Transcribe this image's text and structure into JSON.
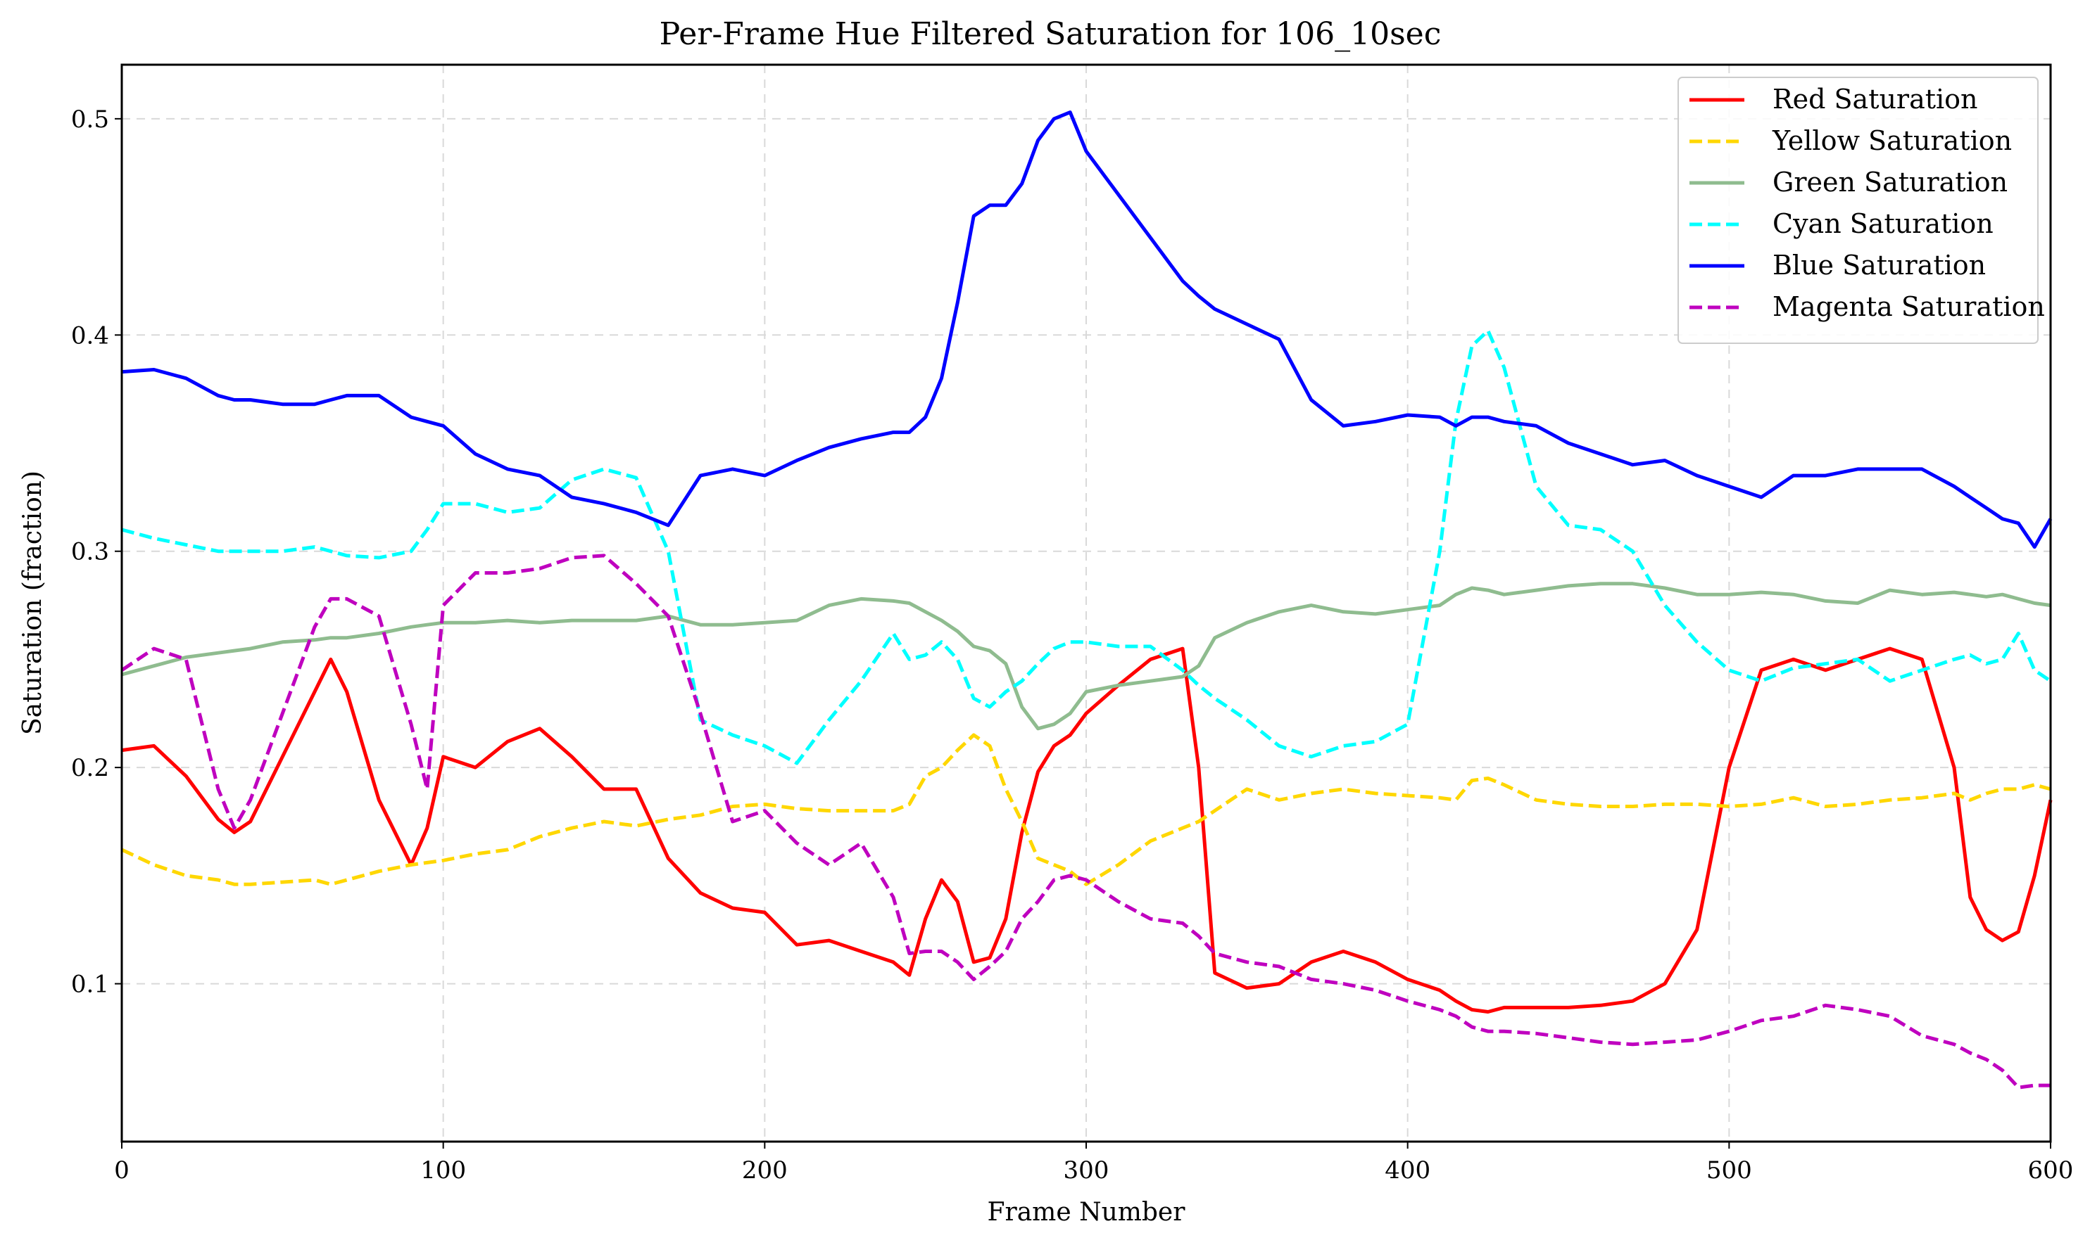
{
  "chart_data": {
    "type": "line",
    "title": "Per-Frame Hue Filtered Saturation for 106_10sec",
    "xlabel": "Frame Number",
    "ylabel": "Saturation (fraction)",
    "xlim": [
      0,
      600
    ],
    "ylim": [
      0.027,
      0.525
    ],
    "xticks": [
      0,
      100,
      200,
      300,
      400,
      500,
      600
    ],
    "yticks": [
      0.1,
      0.2,
      0.3,
      0.4,
      0.5
    ],
    "grid": true,
    "legend_position": "top-right",
    "x": [
      0,
      10,
      20,
      30,
      35,
      40,
      50,
      60,
      65,
      70,
      80,
      90,
      95,
      100,
      110,
      120,
      130,
      140,
      150,
      160,
      170,
      180,
      190,
      200,
      210,
      220,
      230,
      240,
      245,
      250,
      255,
      260,
      265,
      270,
      275,
      280,
      285,
      290,
      295,
      300,
      310,
      320,
      330,
      335,
      340,
      350,
      360,
      370,
      380,
      390,
      400,
      410,
      415,
      420,
      425,
      430,
      440,
      450,
      460,
      470,
      480,
      490,
      500,
      510,
      520,
      530,
      540,
      550,
      560,
      570,
      575,
      580,
      585,
      590,
      595,
      600
    ],
    "series": [
      {
        "name": "Red Saturation",
        "color": "#ff0000",
        "dash": "solid",
        "values": [
          0.208,
          0.21,
          0.196,
          0.176,
          0.17,
          0.175,
          0.205,
          0.235,
          0.25,
          0.235,
          0.185,
          0.155,
          0.172,
          0.205,
          0.2,
          0.212,
          0.218,
          0.205,
          0.19,
          0.19,
          0.158,
          0.142,
          0.135,
          0.133,
          0.118,
          0.12,
          0.115,
          0.11,
          0.104,
          0.13,
          0.148,
          0.138,
          0.11,
          0.112,
          0.13,
          0.17,
          0.198,
          0.21,
          0.215,
          0.225,
          0.238,
          0.25,
          0.255,
          0.2,
          0.105,
          0.098,
          0.1,
          0.11,
          0.115,
          0.11,
          0.102,
          0.097,
          0.092,
          0.088,
          0.087,
          0.089,
          0.089,
          0.089,
          0.09,
          0.092,
          0.1,
          0.125,
          0.2,
          0.245,
          0.25,
          0.245,
          0.25,
          0.255,
          0.25,
          0.2,
          0.14,
          0.125,
          0.12,
          0.124,
          0.15,
          0.185
        ]
      },
      {
        "name": "Yellow Saturation",
        "color": "#ffd700",
        "dash": "dashed",
        "values": [
          0.162,
          0.155,
          0.15,
          0.148,
          0.146,
          0.146,
          0.147,
          0.148,
          0.146,
          0.148,
          0.152,
          0.155,
          0.156,
          0.157,
          0.16,
          0.162,
          0.168,
          0.172,
          0.175,
          0.173,
          0.176,
          0.178,
          0.182,
          0.183,
          0.181,
          0.18,
          0.18,
          0.18,
          0.183,
          0.196,
          0.2,
          0.208,
          0.215,
          0.21,
          0.19,
          0.175,
          0.158,
          0.155,
          0.152,
          0.146,
          0.155,
          0.166,
          0.172,
          0.175,
          0.18,
          0.19,
          0.185,
          0.188,
          0.19,
          0.188,
          0.187,
          0.186,
          0.185,
          0.194,
          0.195,
          0.192,
          0.185,
          0.183,
          0.182,
          0.182,
          0.183,
          0.183,
          0.182,
          0.183,
          0.186,
          0.182,
          0.183,
          0.185,
          0.186,
          0.188,
          0.185,
          0.188,
          0.19,
          0.19,
          0.192,
          0.19
        ]
      },
      {
        "name": "Green Saturation",
        "color": "#8fbc8f",
        "dash": "solid",
        "values": [
          0.243,
          0.247,
          0.251,
          0.253,
          0.254,
          0.255,
          0.258,
          0.259,
          0.26,
          0.26,
          0.262,
          0.265,
          0.266,
          0.267,
          0.267,
          0.268,
          0.267,
          0.268,
          0.268,
          0.268,
          0.27,
          0.266,
          0.266,
          0.267,
          0.268,
          0.275,
          0.278,
          0.277,
          0.276,
          0.272,
          0.268,
          0.263,
          0.256,
          0.254,
          0.248,
          0.228,
          0.218,
          0.22,
          0.225,
          0.235,
          0.238,
          0.24,
          0.242,
          0.247,
          0.26,
          0.267,
          0.272,
          0.275,
          0.272,
          0.271,
          0.273,
          0.275,
          0.28,
          0.283,
          0.282,
          0.28,
          0.282,
          0.284,
          0.285,
          0.285,
          0.283,
          0.28,
          0.28,
          0.281,
          0.28,
          0.277,
          0.276,
          0.282,
          0.28,
          0.281,
          0.28,
          0.279,
          0.28,
          0.278,
          0.276,
          0.275
        ]
      },
      {
        "name": "Cyan Saturation",
        "color": "#00ffff",
        "dash": "dashed",
        "values": [
          0.31,
          0.306,
          0.303,
          0.3,
          0.3,
          0.3,
          0.3,
          0.302,
          0.3,
          0.298,
          0.297,
          0.3,
          0.31,
          0.322,
          0.322,
          0.318,
          0.32,
          0.333,
          0.338,
          0.334,
          0.3,
          0.222,
          0.215,
          0.21,
          0.202,
          0.222,
          0.24,
          0.262,
          0.25,
          0.252,
          0.258,
          0.25,
          0.232,
          0.228,
          0.235,
          0.24,
          0.248,
          0.255,
          0.258,
          0.258,
          0.256,
          0.256,
          0.245,
          0.238,
          0.232,
          0.222,
          0.21,
          0.205,
          0.21,
          0.212,
          0.22,
          0.3,
          0.36,
          0.395,
          0.402,
          0.385,
          0.33,
          0.312,
          0.31,
          0.3,
          0.275,
          0.258,
          0.245,
          0.24,
          0.246,
          0.248,
          0.25,
          0.24,
          0.245,
          0.25,
          0.252,
          0.248,
          0.25,
          0.262,
          0.245,
          0.24
        ]
      },
      {
        "name": "Blue Saturation",
        "color": "#0000ff",
        "dash": "solid",
        "values": [
          0.383,
          0.384,
          0.38,
          0.372,
          0.37,
          0.37,
          0.368,
          0.368,
          0.37,
          0.372,
          0.372,
          0.362,
          0.36,
          0.358,
          0.345,
          0.338,
          0.335,
          0.325,
          0.322,
          0.318,
          0.312,
          0.335,
          0.338,
          0.335,
          0.342,
          0.348,
          0.352,
          0.355,
          0.355,
          0.362,
          0.38,
          0.415,
          0.455,
          0.46,
          0.46,
          0.47,
          0.49,
          0.5,
          0.503,
          0.485,
          0.465,
          0.445,
          0.425,
          0.418,
          0.412,
          0.405,
          0.398,
          0.37,
          0.358,
          0.36,
          0.363,
          0.362,
          0.358,
          0.362,
          0.362,
          0.36,
          0.358,
          0.35,
          0.345,
          0.34,
          0.342,
          0.335,
          0.33,
          0.325,
          0.335,
          0.335,
          0.338,
          0.338,
          0.338,
          0.33,
          0.325,
          0.32,
          0.315,
          0.313,
          0.302,
          0.315
        ]
      },
      {
        "name": "Magenta Saturation",
        "color": "#bf00bf",
        "dash": "dashed",
        "values": [
          0.245,
          0.255,
          0.25,
          0.19,
          0.172,
          0.185,
          0.225,
          0.265,
          0.278,
          0.278,
          0.27,
          0.22,
          0.19,
          0.275,
          0.29,
          0.29,
          0.292,
          0.297,
          0.298,
          0.285,
          0.27,
          0.225,
          0.175,
          0.18,
          0.165,
          0.155,
          0.165,
          0.14,
          0.114,
          0.115,
          0.115,
          0.11,
          0.102,
          0.108,
          0.115,
          0.13,
          0.138,
          0.148,
          0.15,
          0.148,
          0.138,
          0.13,
          0.128,
          0.122,
          0.114,
          0.11,
          0.108,
          0.102,
          0.1,
          0.097,
          0.092,
          0.088,
          0.085,
          0.08,
          0.078,
          0.078,
          0.077,
          0.075,
          0.073,
          0.072,
          0.073,
          0.074,
          0.078,
          0.083,
          0.085,
          0.09,
          0.088,
          0.085,
          0.076,
          0.072,
          0.068,
          0.065,
          0.06,
          0.052,
          0.053,
          0.053
        ]
      }
    ]
  }
}
